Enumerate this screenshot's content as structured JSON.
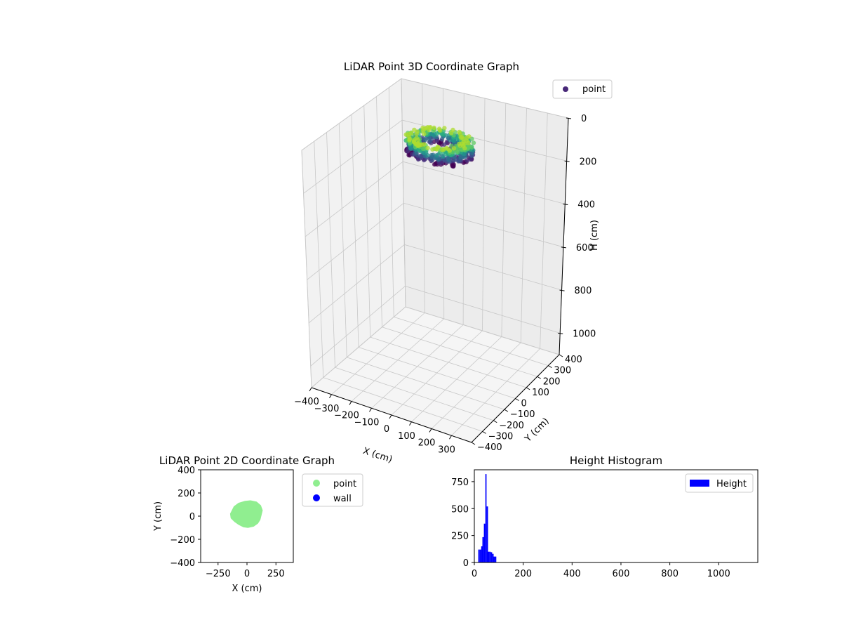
{
  "chart_data": [
    {
      "type": "scatter",
      "title": "LiDAR Point 3D Coordinate Graph",
      "xlabel": "X (cm)",
      "ylabel": "Y (cm)",
      "zlabel": "H (cm)",
      "xlim": [
        -400,
        400
      ],
      "ylim": [
        -400,
        400
      ],
      "zlim": [
        0,
        1100
      ],
      "z_inverted": true,
      "x_ticks": [
        "−400",
        "−300",
        "−200",
        "−100",
        "0",
        "100",
        "200",
        "300"
      ],
      "y_ticks": [
        "−400",
        "−300",
        "−200",
        "−100",
        "0",
        "100",
        "200",
        "300",
        "400"
      ],
      "z_ticks": [
        "0",
        "200",
        "400",
        "600",
        "800",
        "1000"
      ],
      "grid": true,
      "colormap": "viridis",
      "legend": {
        "position": "top-right",
        "entries": [
          {
            "label": "point",
            "color": "#482878"
          }
        ]
      },
      "point_cloud": {
        "x_range": [
          -140,
          160
        ],
        "y_range": [
          -90,
          130
        ],
        "h_range": [
          20,
          100
        ]
      }
    },
    {
      "type": "scatter",
      "title": "LiDAR Point 2D Coordinate Graph",
      "xlabel": "X (cm)",
      "ylabel": "Y (cm)",
      "xlim": [
        -400,
        400
      ],
      "ylim": [
        -400,
        400
      ],
      "x_ticks": [
        "−250",
        "0",
        "250"
      ],
      "y_ticks": [
        "400",
        "200",
        "0",
        "−200",
        "−400"
      ],
      "legend": {
        "position": "outside-right",
        "entries": [
          {
            "label": "point",
            "color": "#90ee90"
          },
          {
            "label": "wall",
            "color": "#0000ff"
          }
        ]
      },
      "series": [
        {
          "name": "point",
          "color": "#90ee90",
          "outline": [
            [
              -130,
              40
            ],
            [
              -110,
              80
            ],
            [
              -70,
              110
            ],
            [
              -20,
              125
            ],
            [
              30,
              130
            ],
            [
              80,
              120
            ],
            [
              115,
              90
            ],
            [
              130,
              50
            ],
            [
              120,
              10
            ],
            [
              110,
              -30
            ],
            [
              90,
              -60
            ],
            [
              55,
              -85
            ],
            [
              10,
              -95
            ],
            [
              -30,
              -90
            ],
            [
              -70,
              -70
            ],
            [
              -105,
              -45
            ],
            [
              -135,
              -15
            ],
            [
              -140,
              20
            ]
          ]
        },
        {
          "name": "wall",
          "color": "#0000ff",
          "values": []
        }
      ]
    },
    {
      "type": "bar",
      "title": "Height Histogram",
      "xlim": [
        0,
        1160
      ],
      "ylim": [
        0,
        860
      ],
      "x_ticks": [
        "0",
        "200",
        "400",
        "600",
        "800",
        "1000"
      ],
      "y_ticks": [
        "0",
        "250",
        "500",
        "750"
      ],
      "legend": {
        "position": "top-right",
        "entries": [
          {
            "label": "Height",
            "color": "#0000ff"
          }
        ]
      },
      "series": [
        {
          "name": "Height",
          "color": "#0000ff",
          "bins": [
            {
              "x0": 16,
              "x1": 22,
              "y": 120
            },
            {
              "x0": 22,
              "x1": 28,
              "y": 120
            },
            {
              "x0": 28,
              "x1": 33,
              "y": 150
            },
            {
              "x0": 33,
              "x1": 39,
              "y": 235
            },
            {
              "x0": 39,
              "x1": 45,
              "y": 360
            },
            {
              "x0": 45,
              "x1": 50,
              "y": 820
            },
            {
              "x0": 50,
              "x1": 56,
              "y": 520
            },
            {
              "x0": 56,
              "x1": 62,
              "y": 100
            },
            {
              "x0": 62,
              "x1": 67,
              "y": 100
            },
            {
              "x0": 67,
              "x1": 73,
              "y": 95
            },
            {
              "x0": 73,
              "x1": 79,
              "y": 80
            },
            {
              "x0": 79,
              "x1": 85,
              "y": 55
            },
            {
              "x0": 85,
              "x1": 90,
              "y": 55
            }
          ]
        }
      ]
    }
  ]
}
